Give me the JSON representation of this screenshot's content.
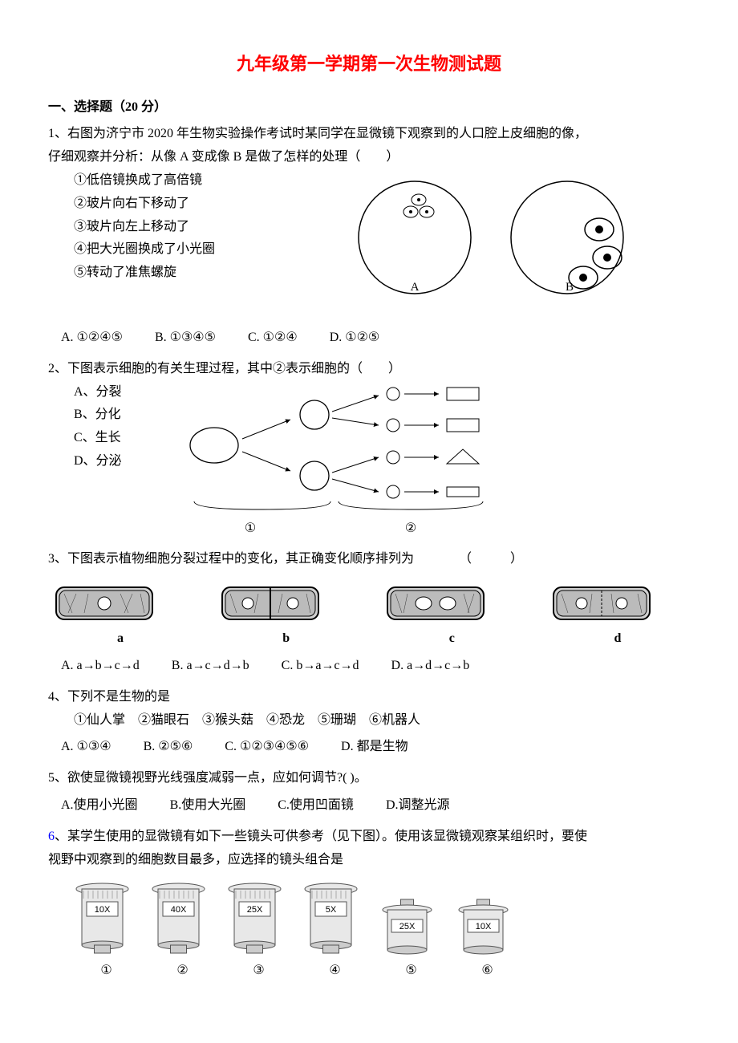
{
  "title": "九年级第一学期第一次生物测试题",
  "section1": {
    "header": "一、选择题（20 分）",
    "q1": {
      "stem_l1": "1、右图为济宁市 2020 年生物实验操作考试时某同学在显微镜下观察到的人口腔上皮细胞的像，",
      "stem_l2": "仔细观察并分析：从像 A 变成像 B 是做了怎样的处理（　　）",
      "opt1": "①低倍镜换成了高倍镜",
      "opt2": "②玻片向右下移动了",
      "opt3": "③玻片向左上移动了",
      "opt4": "④把大光圈换成了小光圈",
      "opt5": "⑤转动了准焦螺旋",
      "labelA": "A",
      "labelB": "B",
      "ansA": "A. ①②④⑤",
      "ansB": "B. ①③④⑤",
      "ansC": "C. ①②④",
      "ansD": "D. ①②⑤"
    },
    "q2": {
      "stem": "2、下图表示细胞的有关生理过程，其中②表示细胞的（　　）",
      "A": "A、分裂",
      "B": "B、分化",
      "C": "C、生长",
      "D": "D、分泌",
      "lab1": "①",
      "lab2": "②"
    },
    "q3": {
      "stem": "3、下图表示植物细胞分裂过程中的变化，其正确变化顺序排列为　　　　（　　　）",
      "la": "a",
      "lb": "b",
      "lc": "c",
      "ld": "d",
      "A": "A. a→b→c→d",
      "B": "B. a→c→d→b",
      "C": "C. b→a→c→d",
      "D": "D. a→d→c→b"
    },
    "q4": {
      "stem": "4、下列不是生物的是",
      "items": "①仙人掌　②猫眼石　③猴头菇　④恐龙　⑤珊瑚　⑥机器人",
      "A": "A. ①③④",
      "B": "B. ②⑤⑥",
      "C": "C. ①②③④⑤⑥",
      "D": "D. 都是生物"
    },
    "q5": {
      "stem": "5、欲使显微镜视野光线强度减弱一点，应如何调节?( )。",
      "A": "A.使用小光圈",
      "B": "B.使用大光圈",
      "C": "C.使用凹面镜",
      "D": "D.调整光源"
    },
    "q6": {
      "stem_l1": "6、某学生使用的显微镜有如下一些镜头可供参考（见下图）。使用该显微镜观察某组织时，要使",
      "stem_l2": "视野中观察到的细胞数目最多，应选择的镜头组合是",
      "lenses": [
        "10X",
        "40X",
        "25X",
        "5X",
        "25X",
        "10X"
      ],
      "nums": [
        "①",
        "②",
        "③",
        "④",
        "⑤",
        "⑥"
      ]
    }
  },
  "colors": {
    "title": "#ff0000",
    "blue": "#0000ff",
    "black": "#000000",
    "hatch": "#888888"
  }
}
